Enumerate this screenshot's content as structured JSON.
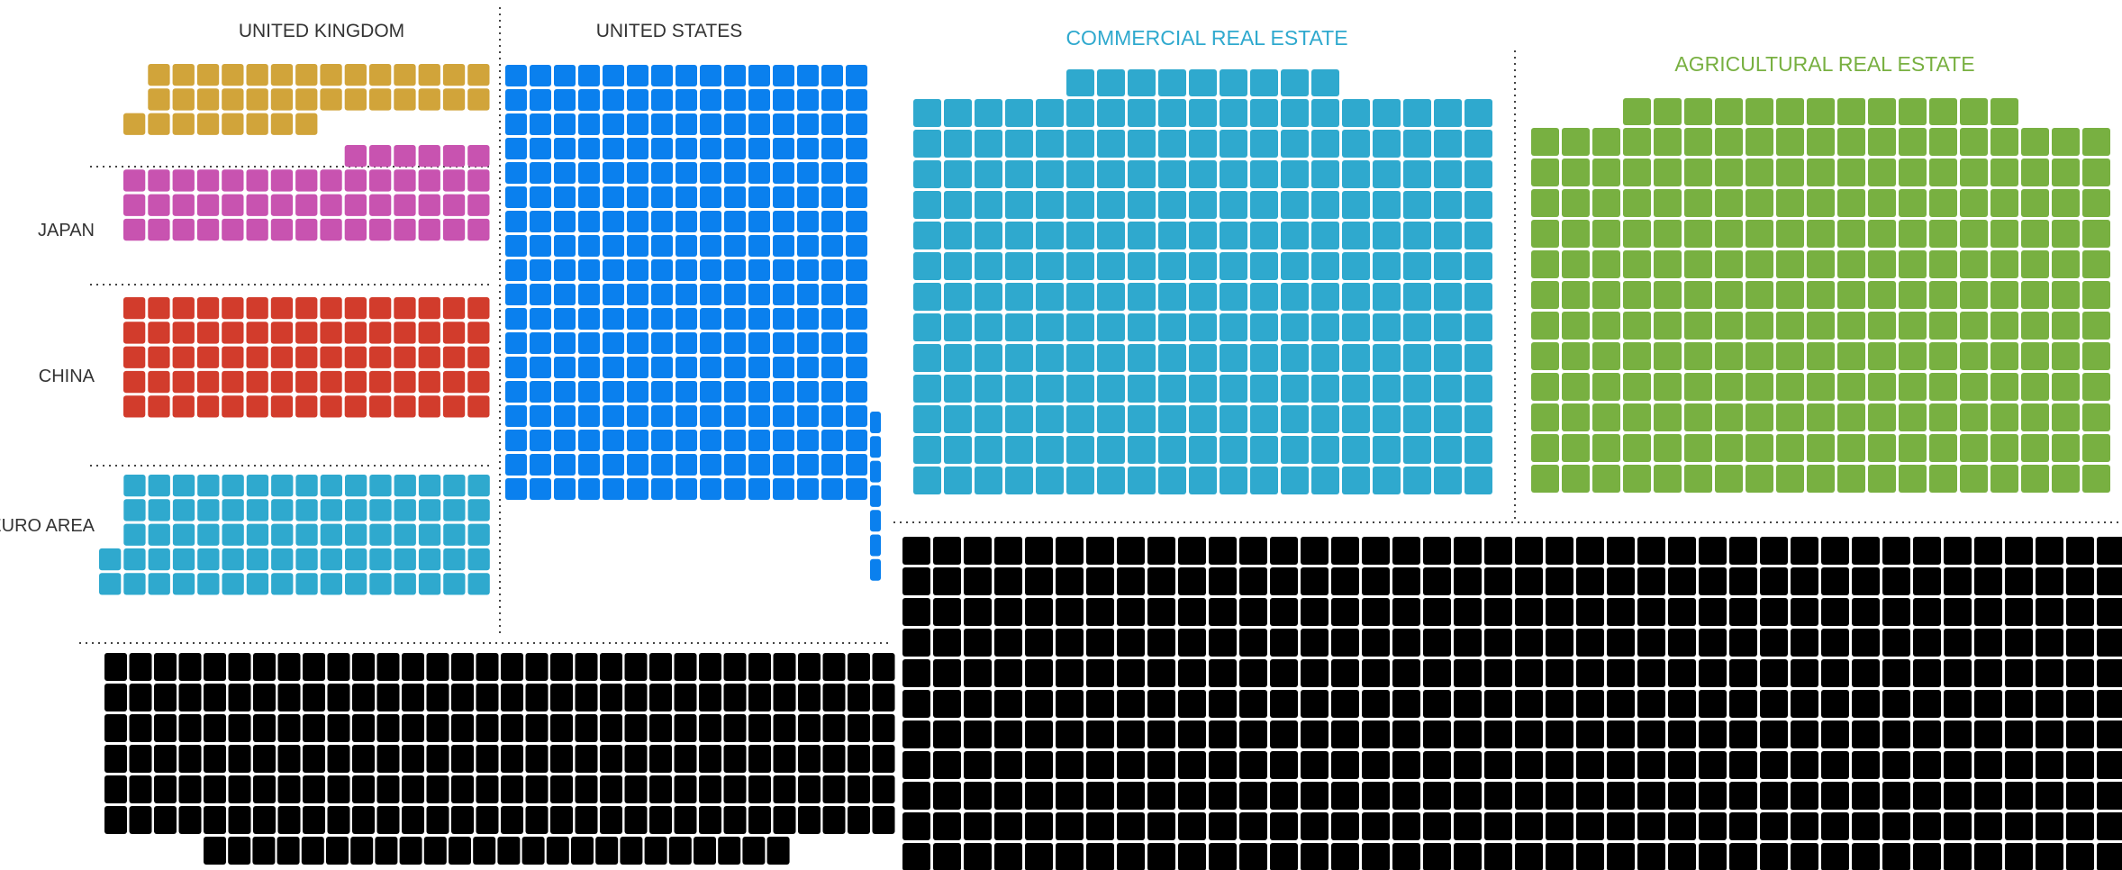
{
  "chart_data": {
    "type": "waffle",
    "title": "",
    "groups": [
      {
        "name": "UNITED KINGDOM",
        "color": "#d1a43a",
        "label_color": "#333333",
        "rows": [
          {
            "cells": 14,
            "offset": 1
          },
          {
            "cells": 14,
            "offset": 1
          },
          {
            "cells": 8,
            "offset": 0
          }
        ]
      },
      {
        "name": "JAPAN",
        "color": "#c853b0",
        "label_color": "#333333",
        "rows": [
          {
            "cells": 6,
            "offset": 9
          },
          {
            "cells": 15,
            "offset": 0
          },
          {
            "cells": 15,
            "offset": 0
          },
          {
            "cells": 15,
            "offset": 0
          }
        ]
      },
      {
        "name": "CHINA",
        "color": "#d23c2c",
        "label_color": "#333333",
        "rows": [
          {
            "cells": 15,
            "offset": 0
          },
          {
            "cells": 15,
            "offset": 0
          },
          {
            "cells": 15,
            "offset": 0
          },
          {
            "cells": 15,
            "offset": 0
          },
          {
            "cells": 15,
            "offset": 0
          }
        ]
      },
      {
        "name": "EURO AREA",
        "color": "#2fa9ce",
        "label_color": "#333333",
        "rows": [
          {
            "cells": 15,
            "offset": 1
          },
          {
            "cells": 15,
            "offset": 1
          },
          {
            "cells": 15,
            "offset": 1
          },
          {
            "cells": 16,
            "offset": 0
          },
          {
            "cells": 16,
            "offset": 0
          }
        ]
      },
      {
        "name": "UNITED STATES",
        "color": "#0a80ee",
        "label_color": "#333333",
        "rows_count": 18,
        "cols": 15,
        "extra_col_rows": 7
      },
      {
        "name": "COMMERCIAL REAL ESTATE",
        "color": "#2fa9ce",
        "label_color": "#2fa9ce",
        "top_row": {
          "cells": 9,
          "offset": 5
        },
        "rows_count": 13,
        "cols": 19
      },
      {
        "name": "AGRICULTURAL REAL ESTATE",
        "color": "#78b041",
        "label_color": "#78b041",
        "top_row": {
          "cells": 13,
          "offset": 3
        },
        "rows_count": 12,
        "cols": 19
      },
      {
        "name": "",
        "color": "#000000",
        "label_color": "#333333",
        "rows": [
          {
            "cells": 32,
            "offset": 0
          },
          {
            "cells": 32,
            "offset": 0
          },
          {
            "cells": 32,
            "offset": 0
          },
          {
            "cells": 32,
            "offset": 0
          },
          {
            "cells": 32,
            "offset": 0
          },
          {
            "cells": 32,
            "offset": 0
          },
          {
            "cells": 24,
            "offset": 4
          }
        ]
      },
      {
        "name": "",
        "color": "#000000",
        "label_color": "#333333",
        "rows_count": 11,
        "cols": 40
      }
    ]
  }
}
